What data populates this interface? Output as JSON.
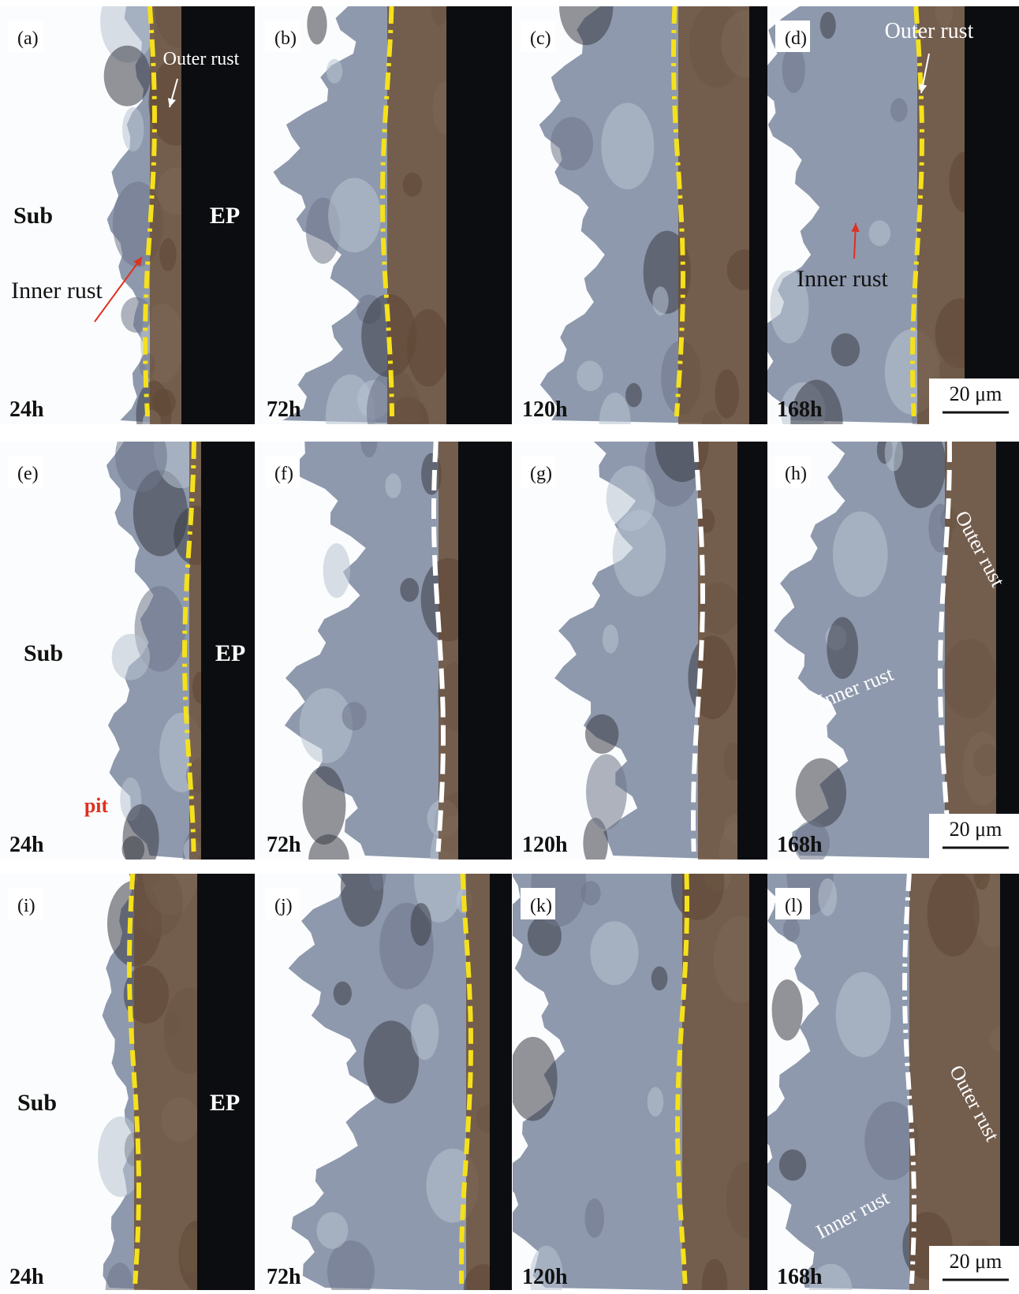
{
  "panels": [
    {
      "label": "(a)",
      "time": "24h",
      "annotations": [
        "Outer rust",
        "Sub",
        "EP",
        "Inner rust"
      ]
    },
    {
      "label": "(b)",
      "time": "72h",
      "annotations": []
    },
    {
      "label": "(c)",
      "time": "120h",
      "annotations": []
    },
    {
      "label": "(d)",
      "time": "168h",
      "annotations": [
        "Outer rust",
        "Inner rust"
      ],
      "scale_bar": "20 μm"
    },
    {
      "label": "(e)",
      "time": "24h",
      "annotations": [
        "Sub",
        "EP",
        "pit"
      ]
    },
    {
      "label": "(f)",
      "time": "72h",
      "annotations": []
    },
    {
      "label": "(g)",
      "time": "120h",
      "annotations": []
    },
    {
      "label": "(h)",
      "time": "168h",
      "annotations": [
        "Outer rust",
        "Inner rust"
      ],
      "scale_bar": "20 μm"
    },
    {
      "label": "(i)",
      "time": "24h",
      "annotations": [
        "Sub",
        "EP"
      ]
    },
    {
      "label": "(j)",
      "time": "72h",
      "annotations": []
    },
    {
      "label": "(k)",
      "time": "120h",
      "annotations": []
    },
    {
      "label": "(l)",
      "time": "168h",
      "annotations": [
        "Outer rust",
        "Inner rust"
      ],
      "scale_bar": "20 μm"
    }
  ]
}
